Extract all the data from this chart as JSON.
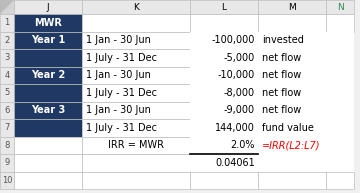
{
  "header_bg": "#1F3864",
  "header_text": "#FFFFFF",
  "col_header_bg": "#E8E8E8",
  "col_header_text": "#000000",
  "row_num_bg": "#E8E8E8",
  "row_num_text": "#555555",
  "cell_bg": "#FFFFFF",
  "grid_color": "#BEBEBE",
  "corner_bg": "#D0D0D0",
  "title_row": "MWR",
  "rows": [
    {
      "year_label": "Year 1",
      "date_range": "1 Jan - 30 Jun",
      "value": "-100,000",
      "note": "invested"
    },
    {
      "year_label": "",
      "date_range": "1 July - 31 Dec",
      "value": "-5,000",
      "note": "net flow"
    },
    {
      "year_label": "Year 2",
      "date_range": "1 Jan - 30 Jun",
      "value": "-10,000",
      "note": "net flow"
    },
    {
      "year_label": "",
      "date_range": "1 July - 31 Dec",
      "value": "-8,000",
      "note": "net flow"
    },
    {
      "year_label": "Year 3",
      "date_range": "1 Jan - 30 Jun",
      "value": "-9,000",
      "note": "net flow"
    },
    {
      "year_label": "",
      "date_range": "1 July - 31 Dec",
      "value": "144,000",
      "note": "fund value"
    }
  ],
  "irr_label": "IRR = MWR",
  "irr_value": "2.0%",
  "irr_formula": "=IRR(L2:L7)",
  "irr_formula_color": "#FF0000",
  "sub_value": "0.04061",
  "col_N_header_color": "#2E8B57",
  "row_numbers": [
    "",
    "1",
    "2",
    "3",
    "4",
    "5",
    "6",
    "7",
    "8",
    "9",
    "10"
  ],
  "col_letters": [
    "J",
    "K",
    "L",
    "M",
    "N"
  ]
}
